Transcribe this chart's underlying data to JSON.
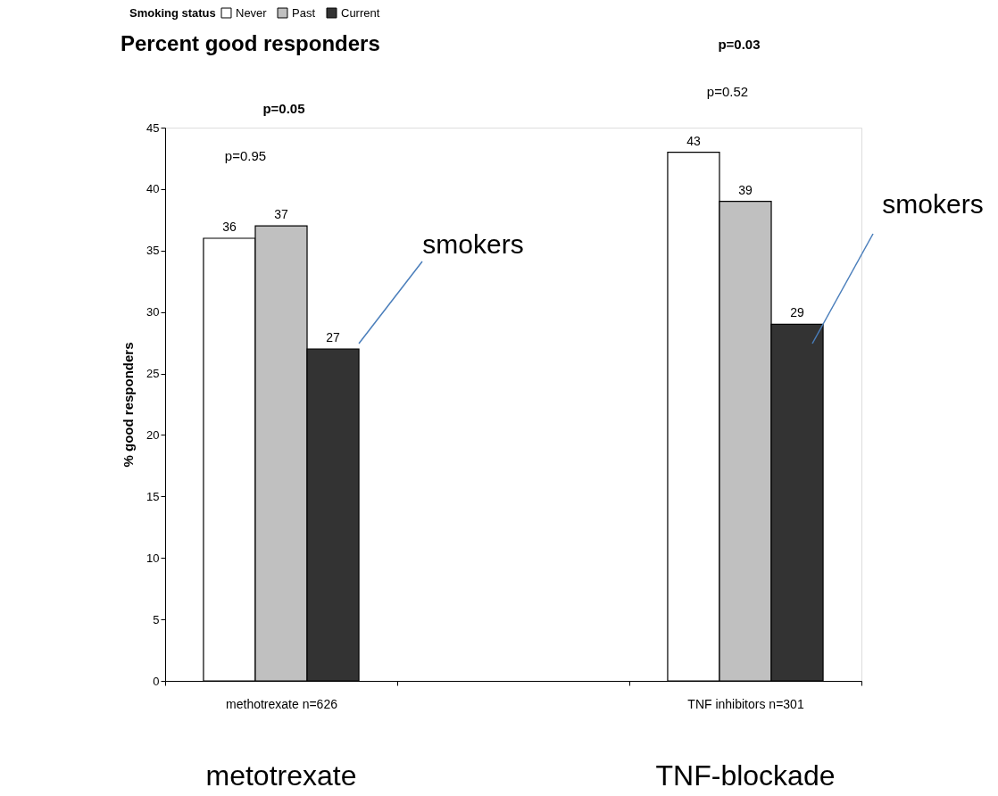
{
  "chart_data": {
    "type": "bar",
    "title": "Percent good responders",
    "ylabel": "% good responders",
    "legend_title": "Smoking status",
    "categories": [
      "methotrexate n=626",
      null,
      "TNF inhibitors n=301"
    ],
    "series": [
      {
        "name": "Never",
        "color": "#ffffff",
        "values": [
          36,
          null,
          43
        ]
      },
      {
        "name": "Past",
        "color": "#c0c0c0",
        "values": [
          37,
          null,
          39
        ]
      },
      {
        "name": "Current",
        "color": "#333333",
        "values": [
          27,
          null,
          29
        ]
      }
    ],
    "ylim": [
      0,
      45
    ],
    "yticks": [
      0,
      5,
      10,
      15,
      20,
      25,
      30,
      35,
      40,
      45
    ],
    "grid": false,
    "legend": "top",
    "data_labels": true,
    "annotations": [
      "p=0.05",
      "p=0.95",
      "p=0.03",
      "p=0.52",
      "smokers",
      "smokers",
      "metotrexate",
      "TNF-blockade"
    ]
  }
}
